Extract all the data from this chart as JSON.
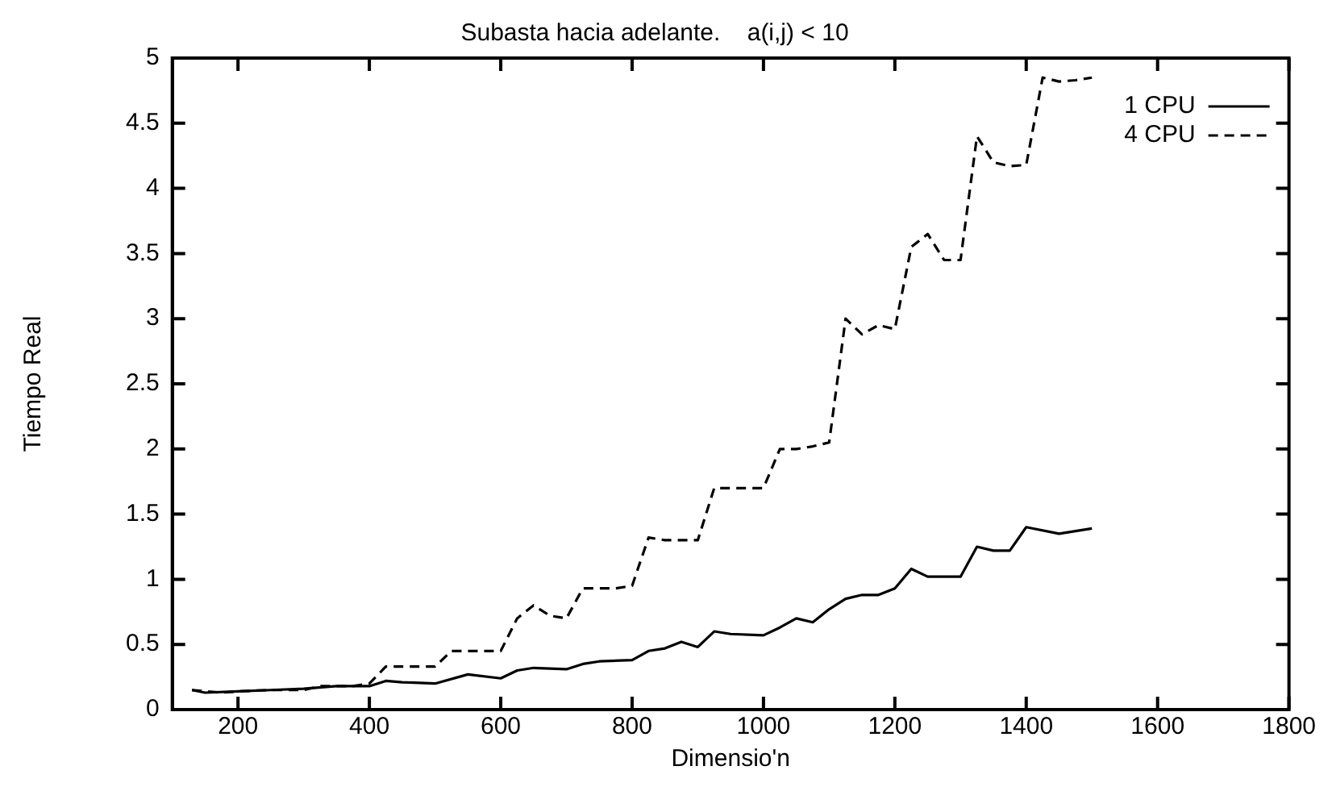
{
  "chart_data": {
    "type": "line",
    "title": "Subasta hacia adelante.    a(i,j) < 10",
    "xlabel": "Dimensio'n",
    "ylabel": "Tiempo Real",
    "xlim": [
      100,
      1800
    ],
    "xticks": [
      200,
      400,
      600,
      800,
      1000,
      1200,
      1400,
      1600,
      1800
    ],
    "ylim": [
      0,
      5
    ],
    "yticks": [
      0,
      0.5,
      1,
      1.5,
      2,
      2.5,
      3,
      3.5,
      4,
      4.5,
      5
    ],
    "grid": false,
    "legend": "top right",
    "marker": "none",
    "series": [
      {
        "name": "1 CPU",
        "color": "#000000",
        "line_style": "solid",
        "x": [
          130,
          150,
          200,
          250,
          300,
          350,
          400,
          425,
          450,
          500,
          550,
          600,
          625,
          650,
          700,
          725,
          750,
          800,
          825,
          850,
          875,
          900,
          925,
          950,
          1000,
          1025,
          1050,
          1075,
          1100,
          1125,
          1150,
          1175,
          1200,
          1225,
          1250,
          1275,
          1300,
          1325,
          1350,
          1375,
          1400,
          1450,
          1500
        ],
        "values": [
          0.15,
          0.13,
          0.14,
          0.15,
          0.16,
          0.18,
          0.18,
          0.22,
          0.21,
          0.2,
          0.27,
          0.24,
          0.3,
          0.32,
          0.31,
          0.35,
          0.37,
          0.38,
          0.45,
          0.47,
          0.52,
          0.48,
          0.6,
          0.58,
          0.57,
          0.63,
          0.7,
          0.67,
          0.77,
          0.85,
          0.88,
          0.88,
          0.93,
          1.08,
          1.02,
          1.02,
          1.02,
          1.25,
          1.22,
          1.22,
          1.4,
          1.35,
          1.39
        ]
      },
      {
        "name": "4 CPU",
        "color": "#000000",
        "line_style": "dashed",
        "x": [
          130,
          150,
          175,
          200,
          250,
          300,
          325,
          350,
          375,
          400,
          425,
          450,
          475,
          500,
          525,
          550,
          575,
          600,
          625,
          650,
          675,
          700,
          725,
          750,
          775,
          800,
          825,
          850,
          875,
          900,
          925,
          950,
          975,
          1000,
          1025,
          1050,
          1075,
          1100,
          1125,
          1150,
          1175,
          1200,
          1225,
          1250,
          1275,
          1300,
          1325,
          1350,
          1375,
          1400,
          1425,
          1450,
          1475,
          1500
        ],
        "values": [
          0.15,
          0.14,
          0.13,
          0.14,
          0.15,
          0.15,
          0.18,
          0.18,
          0.18,
          0.2,
          0.33,
          0.33,
          0.33,
          0.33,
          0.45,
          0.45,
          0.45,
          0.45,
          0.7,
          0.8,
          0.72,
          0.7,
          0.93,
          0.93,
          0.93,
          0.95,
          1.32,
          1.3,
          1.3,
          1.3,
          1.7,
          1.7,
          1.7,
          1.7,
          2.0,
          2.0,
          2.02,
          2.05,
          3.0,
          2.88,
          2.95,
          2.92,
          3.55,
          3.65,
          3.45,
          3.45,
          4.4,
          4.2,
          4.17,
          4.18,
          4.85,
          4.82,
          4.83,
          4.85
        ]
      }
    ]
  }
}
